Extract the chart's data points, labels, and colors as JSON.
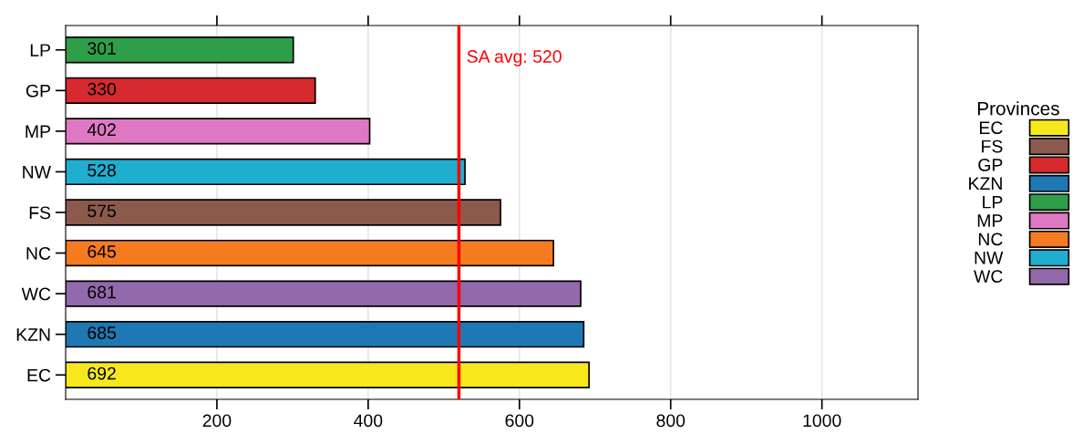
{
  "chart_data": {
    "type": "bar",
    "orientation": "horizontal",
    "categories": [
      "LP",
      "GP",
      "MP",
      "NW",
      "FS",
      "NC",
      "WC",
      "KZN",
      "EC"
    ],
    "series": [
      {
        "name": "EC",
        "color": "#f7e81e",
        "values": [
          null,
          null,
          null,
          null,
          null,
          null,
          null,
          null,
          692
        ]
      },
      {
        "name": "FS",
        "color": "#8c5a4c",
        "values": [
          null,
          null,
          null,
          null,
          575,
          null,
          null,
          null,
          null
        ]
      },
      {
        "name": "GP",
        "color": "#d62a2e",
        "values": [
          null,
          330,
          null,
          null,
          null,
          null,
          null,
          null,
          null
        ]
      },
      {
        "name": "KZN",
        "color": "#1f78b4",
        "values": [
          null,
          null,
          null,
          null,
          null,
          null,
          null,
          685,
          null
        ]
      },
      {
        "name": "LP",
        "color": "#2e9e48",
        "values": [
          301,
          null,
          null,
          null,
          null,
          null,
          null,
          null,
          null
        ]
      },
      {
        "name": "MP",
        "color": "#df78c3",
        "values": [
          null,
          null,
          402,
          null,
          null,
          null,
          null,
          null,
          null
        ]
      },
      {
        "name": "NC",
        "color": "#f47b20",
        "values": [
          null,
          null,
          null,
          null,
          null,
          645,
          null,
          null,
          null
        ]
      },
      {
        "name": "NW",
        "color": "#1eaed0",
        "values": [
          null,
          null,
          null,
          528,
          null,
          null,
          null,
          null,
          null
        ]
      },
      {
        "name": "WC",
        "color": "#9269ab",
        "values": [
          null,
          null,
          null,
          null,
          null,
          null,
          681,
          null,
          null
        ]
      }
    ],
    "data_labels": true,
    "xlim": [
      0,
      1127
    ],
    "xticks": [
      200,
      400,
      600,
      800,
      1000
    ],
    "grid": "x",
    "legend": "right",
    "legend_title": "Provinces",
    "ref_lines": [
      {
        "axis": "x",
        "value": 520,
        "label": "SA avg: 520",
        "color": "#ff0000"
      }
    ]
  }
}
